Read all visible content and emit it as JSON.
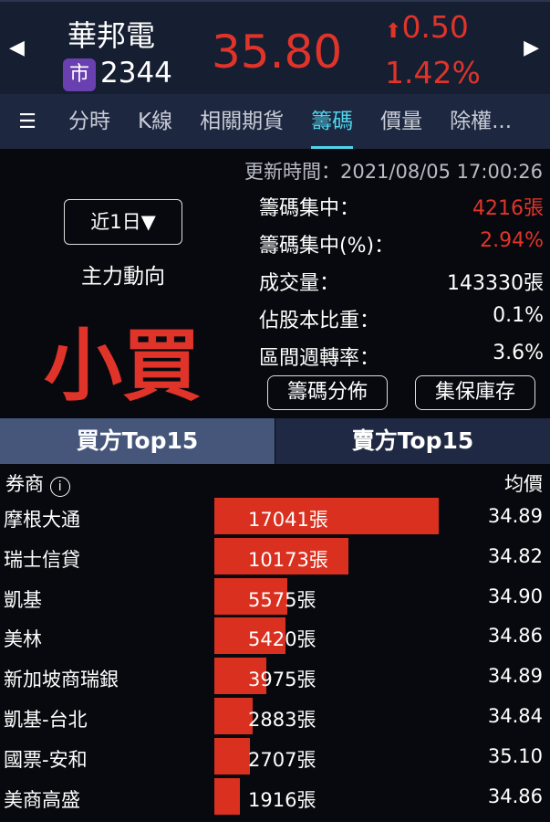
{
  "header": {
    "name": "華邦電",
    "market_badge": "市",
    "code": "2344",
    "price": "35.80",
    "change": "0.50",
    "change_pct": "1.42%",
    "up_color": "#e0342a",
    "prev_icon": "triangle-left",
    "next_icon": "triangle-right"
  },
  "tabs": [
    {
      "label": "分時"
    },
    {
      "label": "K線"
    },
    {
      "label": "相關期貨"
    },
    {
      "label": "籌碼",
      "active": true
    },
    {
      "label": "價量"
    },
    {
      "label": "除權..."
    }
  ],
  "update_time": "更新時間：2021/08/05 17:00:26",
  "period_select": "近1日▼",
  "direction_label": "主力動向",
  "direction_value": "小買",
  "stats": [
    {
      "label": "籌碼集中：",
      "value": "4216張",
      "red": true
    },
    {
      "label": "籌碼集中(%)：",
      "value": "2.94%",
      "red": true
    },
    {
      "label": "成交量：",
      "value": "143330張"
    },
    {
      "label": "佔股本比重：",
      "value": "0.1%"
    },
    {
      "label": "區間週轉率：",
      "value": "3.6%"
    }
  ],
  "buttons": {
    "distribution": "籌碼分佈",
    "custody": "集保庫存"
  },
  "subtabs": {
    "buy": "買方Top15",
    "sell": "賣方Top15"
  },
  "columns": {
    "broker": "券商",
    "avg": "均價"
  },
  "rows": [
    {
      "broker": "摩根大通",
      "lots": 17041,
      "qty": "17041張",
      "avg": "34.89"
    },
    {
      "broker": "瑞士信貸",
      "lots": 10173,
      "qty": "10173張",
      "avg": "34.82"
    },
    {
      "broker": "凱基",
      "lots": 5575,
      "qty": "5575張",
      "avg": "34.90"
    },
    {
      "broker": "美林",
      "lots": 5420,
      "qty": "5420張",
      "avg": "34.86"
    },
    {
      "broker": "新加坡商瑞銀",
      "lots": 3975,
      "qty": "3975張",
      "avg": "34.89"
    },
    {
      "broker": "凱基-台北",
      "lots": 2883,
      "qty": "2883張",
      "avg": "34.84"
    },
    {
      "broker": "國票-安和",
      "lots": 2707,
      "qty": "2707張",
      "avg": "35.10"
    },
    {
      "broker": "美商高盛",
      "lots": 1916,
      "qty": "1916張",
      "avg": "34.86"
    }
  ]
}
